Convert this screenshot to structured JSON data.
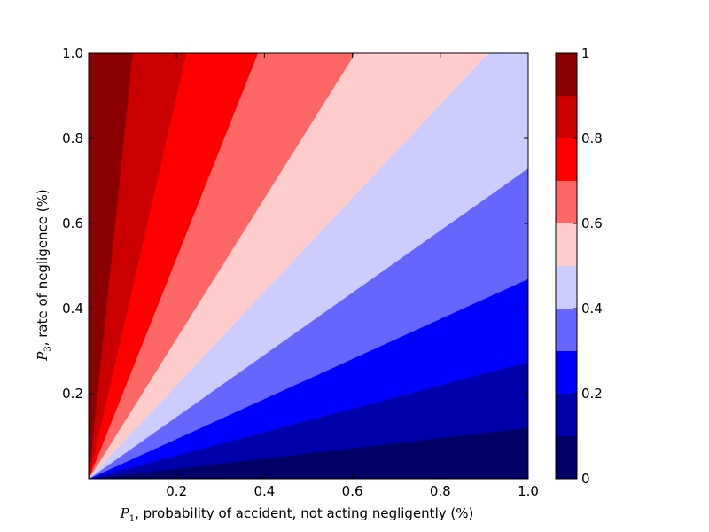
{
  "chart_data": {
    "type": "contourf",
    "xlabel": {
      "symbol": "P",
      "subscript": "1",
      "text": ", probability of accident, not acting negligently (%)"
    },
    "ylabel": {
      "symbol": "P",
      "subscript": "3",
      "text": ", rate of negligence (%)"
    },
    "xlim": [
      0,
      1.0
    ],
    "ylim": [
      0,
      1.0
    ],
    "x_ticks": [
      0.2,
      0.4,
      0.6,
      0.8,
      1.0
    ],
    "x_tick_labels": [
      "0.2",
      "0.4",
      "0.6",
      "0.8",
      "1.0"
    ],
    "y_ticks": [
      0.2,
      0.4,
      0.6,
      0.8,
      1.0
    ],
    "y_tick_labels": [
      "0.2",
      "0.4",
      "0.6",
      "0.8",
      "1.0"
    ],
    "levels": [
      0,
      0.1,
      0.2,
      0.3,
      0.4,
      0.5,
      0.6,
      0.7,
      0.8,
      0.9,
      1.0
    ],
    "band_colors": [
      "#000066",
      "#0000aa",
      "#0000ff",
      "#6666ff",
      "#ccccff",
      "#ffcccc",
      "#ff6666",
      "#ff0000",
      "#cc0000",
      "#8b0000"
    ],
    "boundary_slopes_y_over_x": [
      0.12,
      0.275,
      0.47,
      0.73,
      1.1,
      1.65,
      2.6,
      4.5,
      10
    ],
    "colorbar": {
      "ticks": [
        0,
        0.2,
        0.4,
        0.6,
        0.8,
        1
      ],
      "tick_labels": [
        "0",
        "0.2",
        "0.4",
        "0.6",
        "0.8",
        "1"
      ]
    },
    "grid": false
  }
}
